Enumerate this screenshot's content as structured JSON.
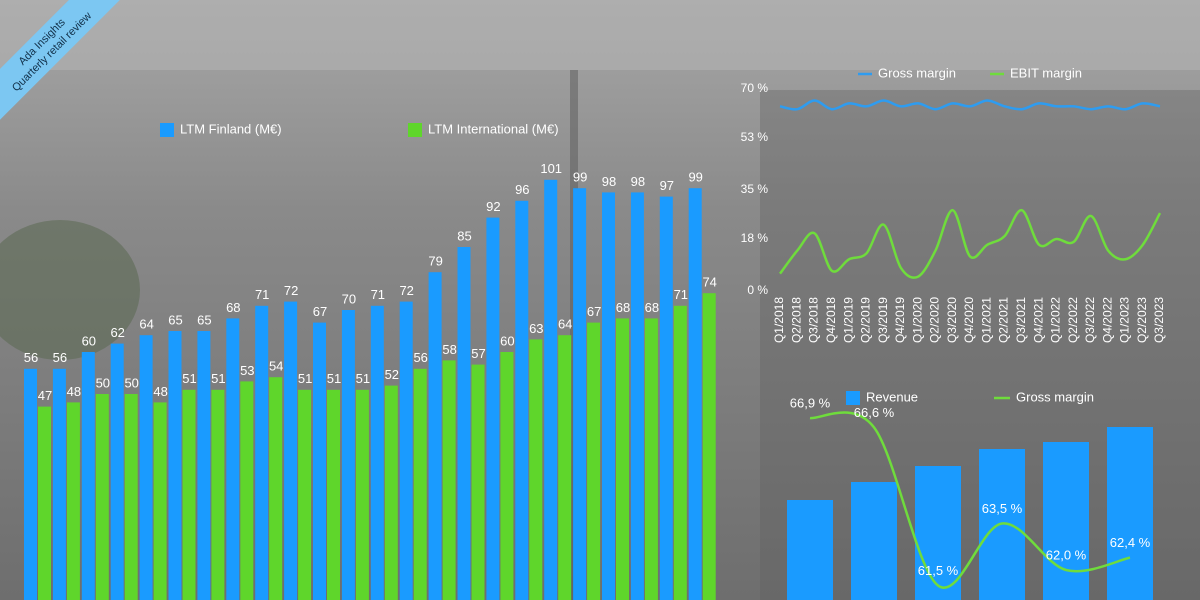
{
  "brand": {
    "name": "Ada Insights",
    "tagline": "Quarterly retail review"
  },
  "chart_data": [
    {
      "type": "bar",
      "categories": [
        null,
        null,
        null,
        null,
        null,
        null,
        null,
        null,
        null,
        null,
        null,
        null,
        null,
        null,
        null,
        null,
        null,
        null,
        null,
        null,
        null,
        null,
        null,
        null
      ],
      "series": [
        {
          "name": "LTM Finland (M€)",
          "color": "#1a9bff",
          "values": [
            56,
            56,
            60,
            62,
            64,
            65,
            65,
            68,
            71,
            72,
            67,
            70,
            71,
            72,
            79,
            85,
            92,
            96,
            101,
            99,
            98,
            98,
            97,
            99
          ]
        },
        {
          "name": "LTM International (M€)",
          "color": "#5fd62b",
          "values": [
            47,
            48,
            50,
            50,
            48,
            51,
            51,
            53,
            54,
            51,
            51,
            51,
            52,
            56,
            58,
            57,
            60,
            63,
            64,
            67,
            68,
            68,
            71,
            74
          ]
        }
      ]
    },
    {
      "type": "line",
      "categories": [
        "Q1/2018",
        "Q2/2018",
        "Q3/2018",
        "Q4/2018",
        "Q1/2019",
        "Q2/2019",
        "Q3/2019",
        "Q4/2019",
        "Q1/2020",
        "Q2/2020",
        "Q3/2020",
        "Q4/2020",
        "Q1/2021",
        "Q2/2021",
        "Q3/2021",
        "Q4/2021",
        "Q1/2022",
        "Q2/2022",
        "Q3/2022",
        "Q4/2022",
        "Q1/2023",
        "Q2/2023",
        "Q3/2023"
      ],
      "series": [
        {
          "name": "Gross margin",
          "color": "#2e9cf0",
          "values": [
            64,
            63,
            66,
            63,
            65,
            64,
            66,
            64,
            65,
            63,
            65,
            64,
            66,
            64,
            63,
            65,
            64,
            64,
            63,
            64,
            63,
            65,
            64
          ]
        },
        {
          "name": "EBIT margin",
          "color": "#6fdc3c",
          "values": [
            6,
            14,
            20,
            7,
            11,
            13,
            23,
            8,
            5,
            14,
            28,
            12,
            16,
            19,
            28,
            16,
            18,
            17,
            26,
            14,
            11,
            16,
            27
          ]
        }
      ],
      "ylim": [
        0,
        70
      ],
      "yticks": [
        {
          "value": 0,
          "label": "0 %"
        },
        {
          "value": 18,
          "label": "18 %"
        },
        {
          "value": 35,
          "label": "35 %"
        },
        {
          "value": 53,
          "label": "53 %"
        },
        {
          "value": 70,
          "label": "70 %"
        }
      ]
    },
    {
      "type": "bar_line",
      "categories": [
        null,
        null,
        null,
        null,
        null,
        null
      ],
      "series": [
        {
          "name": "Revenue",
          "color": "#1a9bff",
          "values": [
            100,
            118,
            134,
            151,
            158,
            173
          ]
        },
        {
          "name": "Gross margin",
          "color": "#6fdc3c",
          "values": [
            66.9,
            66.6,
            61.5,
            63.5,
            62.0,
            62.4
          ],
          "value_labels": [
            "66,9 %",
            "66,6 %",
            "61,5 %",
            "63,5 %",
            "62,0 %",
            "62,4 %"
          ]
        }
      ]
    }
  ]
}
